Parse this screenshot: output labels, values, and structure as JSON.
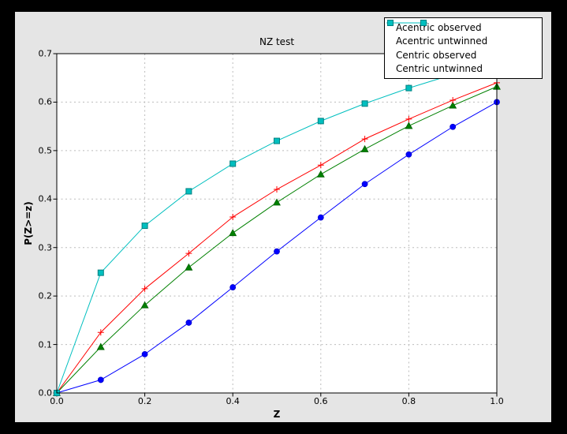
{
  "window": {
    "outer_background": "#000000",
    "figure_background": "#e5e5e5",
    "plot_background": "#ffffff",
    "grid_color": "#bbbbbb",
    "axis_color": "#000000"
  },
  "chart_data": {
    "type": "line",
    "title": "NZ test",
    "xlabel": "Z",
    "ylabel": "P(Z>=z)",
    "xlim": [
      0.0,
      1.0
    ],
    "ylim": [
      0.0,
      0.7
    ],
    "x_tick_labels": [
      "0.0",
      "0.2",
      "0.4",
      "0.6",
      "0.8",
      "1.0"
    ],
    "y_tick_labels": [
      "0.0",
      "0.1",
      "0.2",
      "0.3",
      "0.4",
      "0.5",
      "0.6",
      "0.7"
    ],
    "grid": true,
    "legend_position": "upper right",
    "x": [
      0.0,
      0.1,
      0.2,
      0.3,
      0.4,
      0.5,
      0.6,
      0.7,
      0.8,
      0.9,
      1.0
    ],
    "series": [
      {
        "name": "Acentric observed",
        "color": "#0000ff",
        "marker": "circle",
        "marker_edge": "#0000cc",
        "legend_markers": false,
        "values": [
          0.0,
          0.027,
          0.08,
          0.145,
          0.218,
          0.292,
          0.362,
          0.431,
          0.492,
          0.549,
          0.6
        ]
      },
      {
        "name": "Acentric untwinned",
        "color": "#008000",
        "marker": "triangle",
        "marker_edge": "#006000",
        "legend_markers": false,
        "values": [
          0.0,
          0.095,
          0.181,
          0.259,
          0.33,
          0.393,
          0.451,
          0.503,
          0.551,
          0.593,
          0.632
        ]
      },
      {
        "name": "Centric observed",
        "color": "#ff0000",
        "marker": "plus",
        "marker_edge": "#ff0000",
        "legend_markers": true,
        "values": [
          0.0,
          0.125,
          0.215,
          0.288,
          0.363,
          0.42,
          0.47,
          0.524,
          0.565,
          0.604,
          0.64
        ]
      },
      {
        "name": "Centric untwinned",
        "color": "#00bfbf",
        "marker": "square",
        "marker_edge": "#008080",
        "legend_markers": true,
        "values": [
          0.0,
          0.248,
          0.345,
          0.416,
          0.473,
          0.52,
          0.561,
          0.597,
          0.629,
          0.657,
          0.683
        ]
      }
    ]
  }
}
